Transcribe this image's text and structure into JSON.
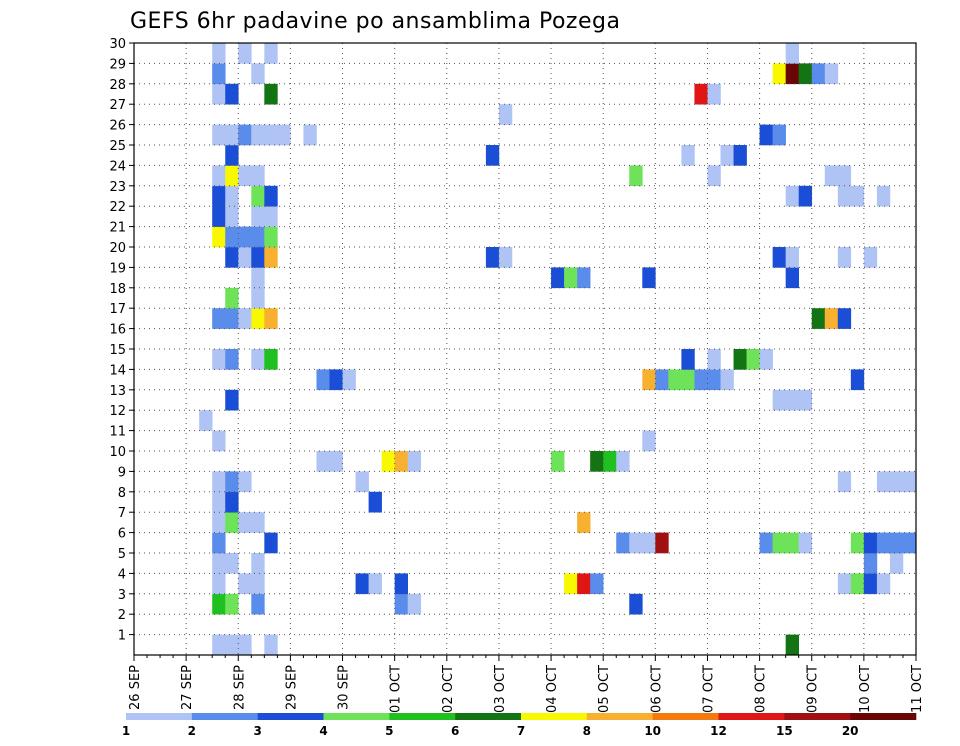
{
  "chart_data": {
    "type": "heatmap",
    "title": "GEFS 6hr padavine po ansamblima Pozega",
    "xlabel": "",
    "ylabel": "",
    "x_tick_labels": [
      "26 SEP",
      "27 SEP",
      "28 SEP",
      "29 SEP",
      "30 SEP",
      "01 OCT",
      "02 OCT",
      "03 OCT",
      "04 OCT",
      "05 OCT",
      "06 OCT",
      "07 OCT",
      "08 OCT",
      "09 OCT",
      "10 OCT",
      "11 OCT"
    ],
    "x_unit": "6-hour step (4 per day)",
    "xlim": [
      0,
      60
    ],
    "y_tick_labels": [
      1,
      2,
      3,
      4,
      5,
      6,
      7,
      8,
      9,
      10,
      11,
      12,
      13,
      14,
      15,
      16,
      17,
      18,
      19,
      20,
      21,
      22,
      23,
      24,
      25,
      26,
      27,
      28,
      29,
      30
    ],
    "ylim": [
      0,
      30
    ],
    "grid": true,
    "legend": {
      "position": "bottom",
      "labels": [
        "1",
        "2",
        "3",
        "4",
        "5",
        "6",
        "7",
        "8",
        "10",
        "12",
        "15",
        "20"
      ],
      "colors": [
        "#afc4f4",
        "#5a8cec",
        "#1a4ed6",
        "#6ee35a",
        "#20c020",
        "#127412",
        "#f8f800",
        "#f8b030",
        "#f47a10",
        "#e01616",
        "#a01010",
        "#6a0606"
      ]
    },
    "cells": [
      [
        6,
        0,
        0
      ],
      [
        7,
        0,
        0
      ],
      [
        8,
        0,
        0
      ],
      [
        10,
        0,
        0
      ],
      [
        50,
        0,
        5
      ],
      [
        6,
        2,
        4
      ],
      [
        7,
        2,
        3
      ],
      [
        9,
        2,
        1
      ],
      [
        20,
        2,
        1
      ],
      [
        21,
        2,
        0
      ],
      [
        38,
        2,
        2
      ],
      [
        6,
        3,
        0
      ],
      [
        8,
        3,
        0
      ],
      [
        9,
        3,
        0
      ],
      [
        17,
        3,
        2
      ],
      [
        18,
        3,
        0
      ],
      [
        20,
        3,
        2
      ],
      [
        33,
        3,
        6
      ],
      [
        34,
        3,
        9
      ],
      [
        35,
        3,
        1
      ],
      [
        54,
        3,
        0
      ],
      [
        55,
        3,
        3
      ],
      [
        56,
        3,
        2
      ],
      [
        57,
        3,
        0
      ],
      [
        6,
        4,
        0
      ],
      [
        7,
        4,
        0
      ],
      [
        9,
        4,
        0
      ],
      [
        56,
        4,
        1
      ],
      [
        58,
        4,
        0
      ],
      [
        6,
        5,
        1
      ],
      [
        10,
        5,
        2
      ],
      [
        37,
        5,
        1
      ],
      [
        38,
        5,
        0
      ],
      [
        39,
        5,
        0
      ],
      [
        40,
        5,
        10
      ],
      [
        48,
        5,
        1
      ],
      [
        49,
        5,
        3
      ],
      [
        50,
        5,
        3
      ],
      [
        51,
        5,
        0
      ],
      [
        55,
        5,
        3
      ],
      [
        56,
        5,
        2
      ],
      [
        57,
        5,
        1
      ],
      [
        58,
        5,
        1
      ],
      [
        59,
        5,
        1
      ],
      [
        6,
        6,
        0
      ],
      [
        7,
        6,
        3
      ],
      [
        8,
        6,
        0
      ],
      [
        9,
        6,
        0
      ],
      [
        34,
        6,
        7
      ],
      [
        6,
        7,
        0
      ],
      [
        7,
        7,
        2
      ],
      [
        18,
        7,
        2
      ],
      [
        6,
        8,
        0
      ],
      [
        7,
        8,
        1
      ],
      [
        8,
        8,
        0
      ],
      [
        17,
        8,
        0
      ],
      [
        54,
        8,
        0
      ],
      [
        57,
        8,
        0
      ],
      [
        58,
        8,
        0
      ],
      [
        59,
        8,
        0
      ],
      [
        14,
        9,
        0
      ],
      [
        15,
        9,
        0
      ],
      [
        19,
        9,
        6
      ],
      [
        20,
        9,
        7
      ],
      [
        21,
        9,
        0
      ],
      [
        32,
        9,
        3
      ],
      [
        35,
        9,
        5
      ],
      [
        36,
        9,
        4
      ],
      [
        37,
        9,
        0
      ],
      [
        6,
        10,
        0
      ],
      [
        39,
        10,
        0
      ],
      [
        5,
        11,
        0
      ],
      [
        7,
        12,
        2
      ],
      [
        49,
        12,
        0
      ],
      [
        50,
        12,
        0
      ],
      [
        51,
        12,
        0
      ],
      [
        14,
        13,
        1
      ],
      [
        15,
        13,
        2
      ],
      [
        16,
        13,
        0
      ],
      [
        39,
        13,
        7
      ],
      [
        40,
        13,
        1
      ],
      [
        41,
        13,
        3
      ],
      [
        42,
        13,
        3
      ],
      [
        43,
        13,
        1
      ],
      [
        44,
        13,
        1
      ],
      [
        45,
        13,
        0
      ],
      [
        55,
        13,
        2
      ],
      [
        6,
        14,
        0
      ],
      [
        7,
        14,
        1
      ],
      [
        9,
        14,
        0
      ],
      [
        10,
        14,
        4
      ],
      [
        42,
        14,
        2
      ],
      [
        44,
        14,
        0
      ],
      [
        46,
        14,
        5
      ],
      [
        47,
        14,
        3
      ],
      [
        48,
        14,
        0
      ],
      [
        6,
        16,
        1
      ],
      [
        7,
        16,
        1
      ],
      [
        8,
        16,
        0
      ],
      [
        9,
        16,
        6
      ],
      [
        10,
        16,
        7
      ],
      [
        52,
        16,
        5
      ],
      [
        53,
        16,
        7
      ],
      [
        54,
        16,
        2
      ],
      [
        7,
        17,
        3
      ],
      [
        9,
        17,
        0
      ],
      [
        9,
        18,
        0
      ],
      [
        32,
        18,
        2
      ],
      [
        33,
        18,
        3
      ],
      [
        34,
        18,
        1
      ],
      [
        39,
        18,
        2
      ],
      [
        50,
        18,
        2
      ],
      [
        7,
        19,
        2
      ],
      [
        8,
        19,
        0
      ],
      [
        9,
        19,
        2
      ],
      [
        10,
        19,
        7
      ],
      [
        27,
        19,
        2
      ],
      [
        28,
        19,
        0
      ],
      [
        49,
        19,
        2
      ],
      [
        50,
        19,
        0
      ],
      [
        54,
        19,
        0
      ],
      [
        56,
        19,
        0
      ],
      [
        6,
        20,
        6
      ],
      [
        7,
        20,
        1
      ],
      [
        8,
        20,
        1
      ],
      [
        9,
        20,
        1
      ],
      [
        10,
        20,
        3
      ],
      [
        6,
        21,
        2
      ],
      [
        7,
        21,
        0
      ],
      [
        9,
        21,
        0
      ],
      [
        10,
        21,
        0
      ],
      [
        6,
        22,
        2
      ],
      [
        7,
        22,
        0
      ],
      [
        9,
        22,
        3
      ],
      [
        10,
        22,
        2
      ],
      [
        50,
        22,
        0
      ],
      [
        51,
        22,
        2
      ],
      [
        54,
        22,
        0
      ],
      [
        55,
        22,
        0
      ],
      [
        57,
        22,
        0
      ],
      [
        6,
        23,
        0
      ],
      [
        7,
        23,
        6
      ],
      [
        8,
        23,
        0
      ],
      [
        9,
        23,
        0
      ],
      [
        38,
        23,
        3
      ],
      [
        44,
        23,
        0
      ],
      [
        53,
        23,
        0
      ],
      [
        54,
        23,
        0
      ],
      [
        7,
        24,
        2
      ],
      [
        27,
        24,
        2
      ],
      [
        42,
        24,
        0
      ],
      [
        45,
        24,
        0
      ],
      [
        46,
        24,
        2
      ],
      [
        6,
        25,
        0
      ],
      [
        7,
        25,
        0
      ],
      [
        8,
        25,
        1
      ],
      [
        9,
        25,
        0
      ],
      [
        10,
        25,
        0
      ],
      [
        11,
        25,
        0
      ],
      [
        13,
        25,
        0
      ],
      [
        48,
        25,
        2
      ],
      [
        49,
        25,
        1
      ],
      [
        28,
        26,
        0
      ],
      [
        6,
        27,
        0
      ],
      [
        7,
        27,
        2
      ],
      [
        10,
        27,
        5
      ],
      [
        43,
        27,
        9
      ],
      [
        44,
        27,
        0
      ],
      [
        6,
        28,
        1
      ],
      [
        9,
        28,
        0
      ],
      [
        49,
        28,
        6
      ],
      [
        50,
        28,
        11
      ],
      [
        51,
        28,
        5
      ],
      [
        52,
        28,
        1
      ],
      [
        53,
        28,
        0
      ],
      [
        6,
        29,
        0
      ],
      [
        8,
        29,
        0
      ],
      [
        10,
        29,
        0
      ],
      [
        50,
        29,
        0
      ]
    ]
  }
}
